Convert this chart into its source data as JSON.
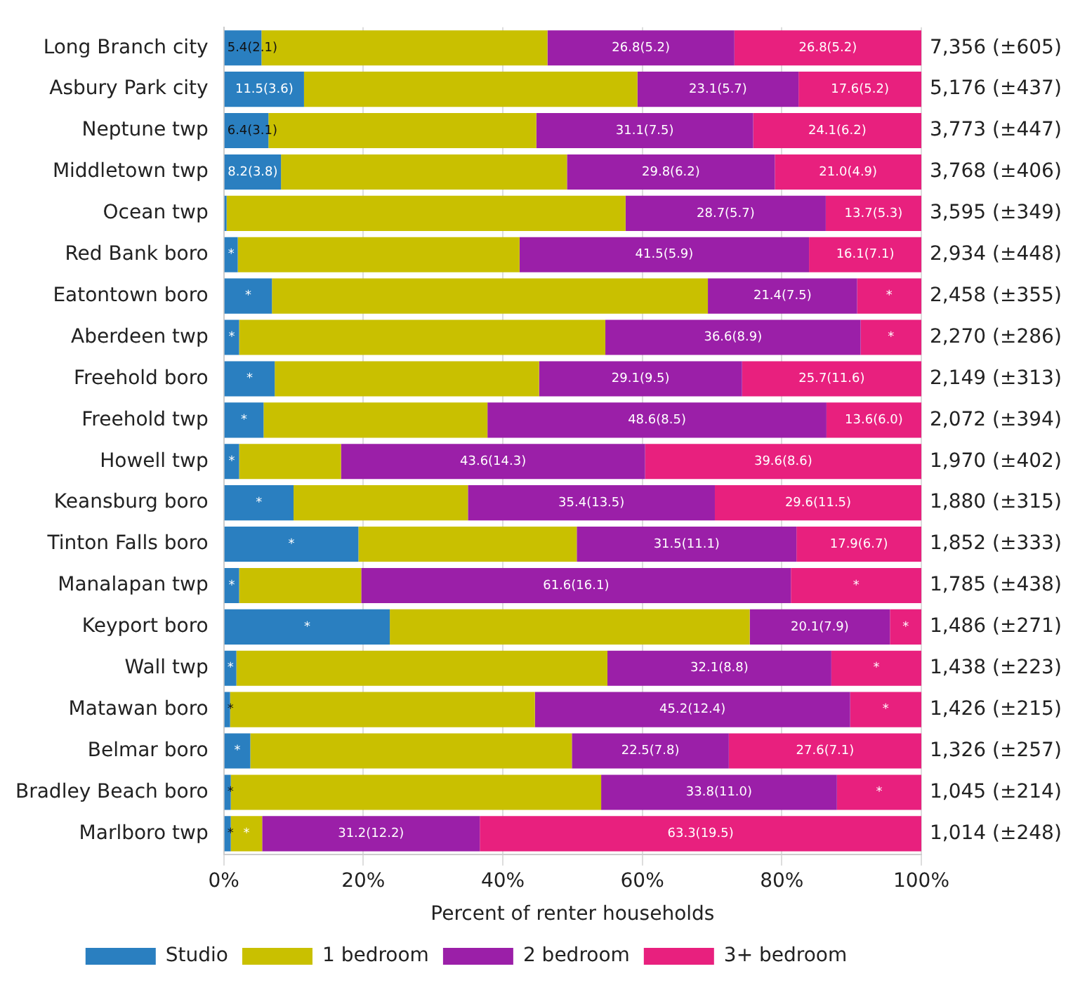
{
  "chart_data": {
    "type": "bar",
    "orientation": "horizontal",
    "stacked": true,
    "xlabel": "Percent of renter households",
    "categories": [
      "Long Branch city",
      "Asbury Park city",
      "Neptune twp",
      "Middletown twp",
      "Ocean twp",
      "Red Bank boro",
      "Eatontown boro",
      "Aberdeen twp",
      "Freehold boro",
      "Freehold twp",
      "Howell twp",
      "Keansburg boro",
      "Tinton Falls boro",
      "Manalapan twp",
      "Keyport boro",
      "Wall twp",
      "Matawan boro",
      "Belmar boro",
      "Bradley Beach boro",
      "Marlboro twp"
    ],
    "series": [
      {
        "name": "Studio",
        "color": "#2a7fc0",
        "values": [
          5.4,
          11.5,
          6.4,
          8.2,
          0.4,
          2.0,
          6.9,
          2.2,
          7.3,
          5.7,
          2.2,
          10.0,
          19.3,
          2.2,
          23.8,
          1.8,
          0.9,
          3.8,
          1.0,
          1.0
        ],
        "value_labels": [
          "5.4(2.1)",
          "11.5(3.6)",
          "6.4(3.1)",
          "8.2(3.8)",
          null,
          "*",
          "*",
          "*",
          "*",
          "*",
          "*",
          "*",
          "*",
          "*",
          "*",
          "*",
          "*",
          "*",
          "*",
          "*"
        ]
      },
      {
        "name": "1 bedroom",
        "color": "#c9c000",
        "values": [
          41.0,
          47.8,
          38.4,
          41.0,
          57.2,
          40.4,
          62.5,
          52.5,
          37.9,
          32.1,
          14.6,
          25.0,
          31.3,
          17.5,
          51.6,
          53.2,
          43.7,
          46.1,
          53.1,
          4.5
        ],
        "value_labels": [
          null,
          null,
          null,
          null,
          null,
          null,
          null,
          null,
          null,
          null,
          null,
          null,
          null,
          null,
          null,
          null,
          null,
          null,
          null,
          "*"
        ]
      },
      {
        "name": "2 bedroom",
        "color": "#9b1fa8",
        "values": [
          26.8,
          23.1,
          31.1,
          29.8,
          28.7,
          41.5,
          21.4,
          36.6,
          29.1,
          48.6,
          43.6,
          35.4,
          31.5,
          61.6,
          20.1,
          32.1,
          45.2,
          22.5,
          33.8,
          31.2
        ],
        "value_labels": [
          "26.8(5.2)",
          "23.1(5.7)",
          "31.1(7.5)",
          "29.8(6.2)",
          "28.7(5.7)",
          "41.5(5.9)",
          "21.4(7.5)",
          "36.6(8.9)",
          "29.1(9.5)",
          "48.6(8.5)",
          "43.6(14.3)",
          "35.4(13.5)",
          "31.5(11.1)",
          "61.6(16.1)",
          "20.1(7.9)",
          "32.1(8.8)",
          "45.2(12.4)",
          "22.5(7.8)",
          "33.8(11.0)",
          "31.2(12.2)"
        ]
      },
      {
        "name": "3+ bedroom",
        "color": "#e8207e",
        "values": [
          26.8,
          17.6,
          24.1,
          21.0,
          13.7,
          16.1,
          9.2,
          8.7,
          25.7,
          13.6,
          39.6,
          29.6,
          17.9,
          18.7,
          4.5,
          12.9,
          10.2,
          27.6,
          12.1,
          63.3
        ],
        "value_labels": [
          "26.8(5.2)",
          "17.6(5.2)",
          "24.1(6.2)",
          "21.0(4.9)",
          "13.7(5.3)",
          "16.1(7.1)",
          "*",
          "*",
          "25.7(11.6)",
          "13.6(6.0)",
          "39.6(8.6)",
          "29.6(11.5)",
          "17.9(6.7)",
          "*",
          "*",
          "*",
          "*",
          "27.6(7.1)",
          "*",
          "63.3(19.5)"
        ]
      }
    ],
    "xlim": [
      0,
      100
    ],
    "xticks": [
      {
        "value": 0,
        "label": "0%"
      },
      {
        "value": 20,
        "label": "20%"
      },
      {
        "value": 40,
        "label": "40%"
      },
      {
        "value": 60,
        "label": "60%"
      },
      {
        "value": 80,
        "label": "80%"
      },
      {
        "value": 100,
        "label": "100%"
      }
    ],
    "grid": "x",
    "legend": "bottom",
    "annotations": [
      "7,356 (±605)",
      "5,176 (±437)",
      "3,773 (±447)",
      "3,768 (±406)",
      "3,595 (±349)",
      "2,934 (±448)",
      "2,458 (±355)",
      "2,270 (±286)",
      "2,149 (±313)",
      "2,072 (±394)",
      "1,970 (±402)",
      "1,880 (±315)",
      "1,852 (±333)",
      "1,785 (±438)",
      "1,486 (±271)",
      "1,438 (±223)",
      "1,426 (±215)",
      "1,326 (±257)",
      "1,045 (±214)",
      "1,014 (±248)"
    ]
  }
}
